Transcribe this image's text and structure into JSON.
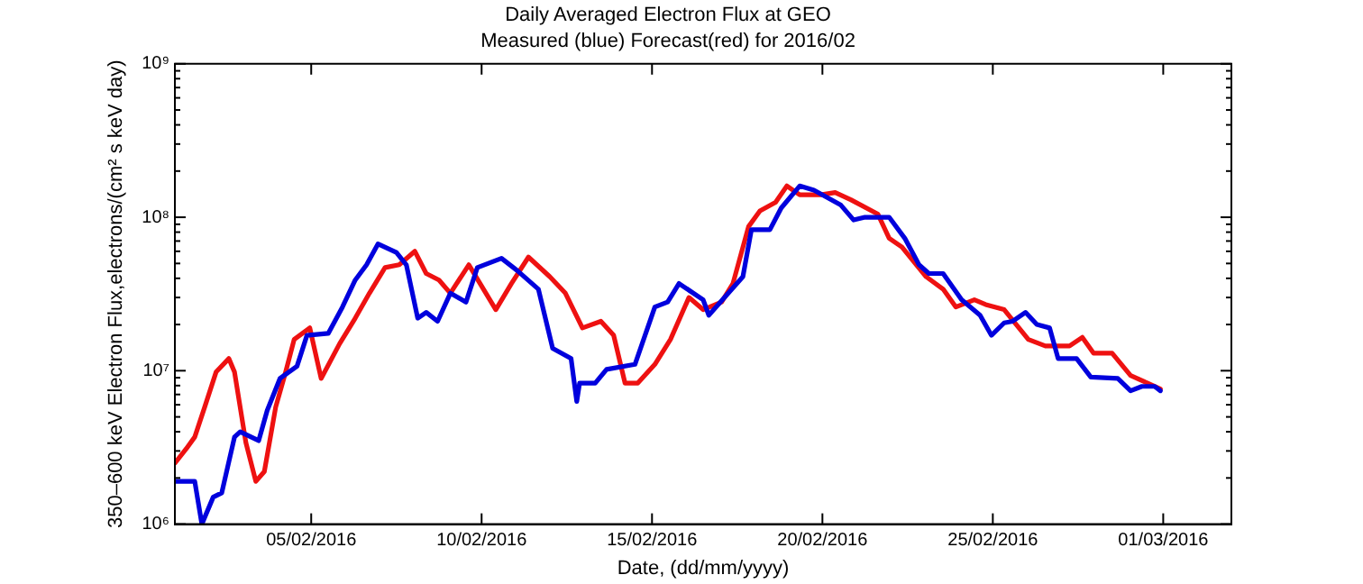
{
  "chart_data": {
    "type": "line",
    "title": "Daily Averaged Electron Flux at GEO",
    "subtitle": "Measured (blue) Forecast(red) for 2016/02",
    "xlabel": "Date, (dd/mm/yyyy)",
    "ylabel": "350–600 keV Electron Flux,electrons/(cm² s keV day)",
    "log": "y",
    "grid": false,
    "legend": false,
    "marker": "none",
    "line_style": "solid",
    "xlim": [
      "2016-02-01T00:00",
      "2016-03-03T00:00"
    ],
    "xticks": [
      {
        "value": "2016-02-05",
        "label": "05/02/2016"
      },
      {
        "value": "2016-02-10",
        "label": "10/02/2016"
      },
      {
        "value": "2016-02-15",
        "label": "15/02/2016"
      },
      {
        "value": "2016-02-20",
        "label": "20/02/2016"
      },
      {
        "value": "2016-02-25",
        "label": "25/02/2016"
      },
      {
        "value": "2016-03-01",
        "label": "01/03/2016"
      }
    ],
    "ylim": [
      1000000,
      1000000000
    ],
    "yticks": [
      {
        "value": 1000000,
        "label": "10⁶"
      },
      {
        "value": 2000000,
        "label": null
      },
      {
        "value": 3000000,
        "label": null
      },
      {
        "value": 4000000,
        "label": null
      },
      {
        "value": 5000000,
        "label": null
      },
      {
        "value": 6000000,
        "label": null
      },
      {
        "value": 7000000,
        "label": null
      },
      {
        "value": 8000000,
        "label": null
      },
      {
        "value": 9000000,
        "label": null
      },
      {
        "value": 10000000,
        "label": "10⁷"
      },
      {
        "value": 20000000,
        "label": null
      },
      {
        "value": 30000000,
        "label": null
      },
      {
        "value": 40000000,
        "label": null
      },
      {
        "value": 50000000,
        "label": null
      },
      {
        "value": 60000000,
        "label": null
      },
      {
        "value": 70000000,
        "label": null
      },
      {
        "value": 80000000,
        "label": null
      },
      {
        "value": 90000000,
        "label": null
      },
      {
        "value": 100000000,
        "label": "10⁸"
      },
      {
        "value": 200000000,
        "label": null
      },
      {
        "value": 300000000,
        "label": null
      },
      {
        "value": 400000000,
        "label": null
      },
      {
        "value": 500000000,
        "label": null
      },
      {
        "value": 600000000,
        "label": null
      },
      {
        "value": 700000000,
        "label": null
      },
      {
        "value": 800000000,
        "label": null
      },
      {
        "value": 900000000,
        "label": null
      },
      {
        "value": 1000000000,
        "label": "10⁹"
      }
    ],
    "series": [
      {
        "color": "#0000dd",
        "x": [
          "2016-02-01T00:00",
          "2016-02-01T14:00",
          "2016-02-01T19:00",
          "2016-02-02T03:00",
          "2016-02-02T09:00",
          "2016-02-02T18:00",
          "2016-02-02T22:00",
          "2016-02-03T11:00",
          "2016-02-03T17:00",
          "2016-02-04T02:00",
          "2016-02-04T14:00",
          "2016-02-04T21:00",
          "2016-02-05T12:00",
          "2016-02-05T22:00",
          "2016-02-06T07:00",
          "2016-02-06T15:00",
          "2016-02-06T23:00",
          "2016-02-07T12:00",
          "2016-02-07T19:00",
          "2016-02-08T03:00",
          "2016-02-08T09:00",
          "2016-02-08T17:00",
          "2016-02-09T02:00",
          "2016-02-09T13:00",
          "2016-02-09T21:00",
          "2016-02-10T14:00",
          "2016-02-11T01:00",
          "2016-02-11T16:00",
          "2016-02-12T02:00",
          "2016-02-12T15:00",
          "2016-02-12T19:00",
          "2016-02-12T21:00",
          "2016-02-13T08:00",
          "2016-02-13T16:00",
          "2016-02-14T12:00",
          "2016-02-15T02:00",
          "2016-02-15T11:00",
          "2016-02-15T19:00",
          "2016-02-16T12:00",
          "2016-02-16T16:00",
          "2016-02-17T07:00",
          "2016-02-17T16:00",
          "2016-02-17T22:00",
          "2016-02-18T11:00",
          "2016-02-18T19:00",
          "2016-02-19T08:00",
          "2016-02-19T18:00",
          "2016-02-20T13:00",
          "2016-02-20T22:00",
          "2016-02-21T06:00",
          "2016-02-21T23:00",
          "2016-02-22T10:00",
          "2016-02-22T20:00",
          "2016-02-23T03:00",
          "2016-02-23T13:00",
          "2016-02-24T02:00",
          "2016-02-24T15:00",
          "2016-02-24T23:00",
          "2016-02-25T08:00",
          "2016-02-25T14:00",
          "2016-02-25T23:00",
          "2016-02-26T07:00",
          "2016-02-26T16:00",
          "2016-02-26T22:00",
          "2016-02-27T11:00",
          "2016-02-27T21:00",
          "2016-02-28T16:00",
          "2016-02-29T01:00",
          "2016-02-29T09:00",
          "2016-02-29T18:00",
          "2016-02-29T22:00"
        ],
        "values": [
          1900000,
          1900000,
          1000000,
          1500000,
          1600000,
          3700000,
          4000000,
          3500000,
          5500000,
          8900000,
          10700000,
          17000000,
          17500000,
          26000000,
          39000000,
          49000000,
          67000000,
          59000000,
          49000000,
          22000000,
          24000000,
          21000000,
          32000000,
          28000000,
          47000000,
          54000000,
          45000000,
          34000000,
          14000000,
          12000000,
          6300000,
          8300000,
          8300000,
          10200000,
          11000000,
          26000000,
          28000000,
          37000000,
          29000000,
          23000000,
          33000000,
          41000000,
          83000000,
          83000000,
          115000000,
          160000000,
          150000000,
          120000000,
          96000000,
          100000000,
          100000000,
          73000000,
          49000000,
          43000000,
          43000000,
          29000000,
          23000000,
          17000000,
          20500000,
          21000000,
          24000000,
          20000000,
          19000000,
          12000000,
          12000000,
          9100000,
          8900000,
          7400000,
          7900000,
          7900000,
          7400000
        ]
      },
      {
        "color": "#ee1111",
        "x": [
          "2016-02-01T00:00",
          "2016-02-01T08:00",
          "2016-02-01T14:00",
          "2016-02-01T21:00",
          "2016-02-02T05:00",
          "2016-02-02T14:00",
          "2016-02-02T18:00",
          "2016-02-03T02:00",
          "2016-02-03T09:00",
          "2016-02-03T15:00",
          "2016-02-03T23:00",
          "2016-02-04T06:00",
          "2016-02-04T12:00",
          "2016-02-04T23:00",
          "2016-02-05T07:00",
          "2016-02-05T20:00",
          "2016-02-06T07:00",
          "2016-02-06T17:00",
          "2016-02-07T04:00",
          "2016-02-07T14:00",
          "2016-02-08T01:00",
          "2016-02-08T09:00",
          "2016-02-08T18:00",
          "2016-02-09T02:00",
          "2016-02-09T15:00",
          "2016-02-10T10:00",
          "2016-02-10T21:00",
          "2016-02-11T09:00",
          "2016-02-12T00:00",
          "2016-02-12T11:00",
          "2016-02-12T23:00",
          "2016-02-13T12:00",
          "2016-02-13T21:00",
          "2016-02-14T05:00",
          "2016-02-14T14:00",
          "2016-02-15T02:00",
          "2016-02-15T13:00",
          "2016-02-16T02:00",
          "2016-02-16T12:00",
          "2016-02-17T01:00",
          "2016-02-17T09:00",
          "2016-02-17T20:00",
          "2016-02-18T04:00",
          "2016-02-18T15:00",
          "2016-02-18T23:00",
          "2016-02-19T08:00",
          "2016-02-19T23:00",
          "2016-02-20T09:00",
          "2016-02-20T20:00",
          "2016-02-21T15:00",
          "2016-02-21T23:00",
          "2016-02-22T08:00",
          "2016-02-23T01:00",
          "2016-02-23T13:00",
          "2016-02-23T22:00",
          "2016-02-24T11:00",
          "2016-02-24T19:00",
          "2016-02-25T08:00",
          "2016-02-26T01:00",
          "2016-02-26T13:00",
          "2016-02-27T06:00",
          "2016-02-27T15:00",
          "2016-02-27T23:00",
          "2016-02-28T12:00",
          "2016-02-29T01:00",
          "2016-02-29T13:00",
          "2016-02-29T22:00"
        ],
        "values": [
          2500000,
          3100000,
          3700000,
          5800000,
          9800000,
          12000000,
          9800000,
          3400000,
          1900000,
          2200000,
          5800000,
          9800000,
          16000000,
          19000000,
          8900000,
          15000000,
          22000000,
          32000000,
          47000000,
          49000000,
          60000000,
          43000000,
          39000000,
          32000000,
          49000000,
          25000000,
          37000000,
          55000000,
          41000000,
          32000000,
          19000000,
          21000000,
          17000000,
          8300000,
          8300000,
          11000000,
          16000000,
          30000000,
          25000000,
          28000000,
          37000000,
          87000000,
          110000000,
          125000000,
          160000000,
          140000000,
          140000000,
          145000000,
          130000000,
          105000000,
          73000000,
          64000000,
          41000000,
          34000000,
          26000000,
          29000000,
          27000000,
          25000000,
          16000000,
          14500000,
          14500000,
          16500000,
          13000000,
          13000000,
          9300000,
          8300000,
          7600000
        ]
      }
    ]
  }
}
